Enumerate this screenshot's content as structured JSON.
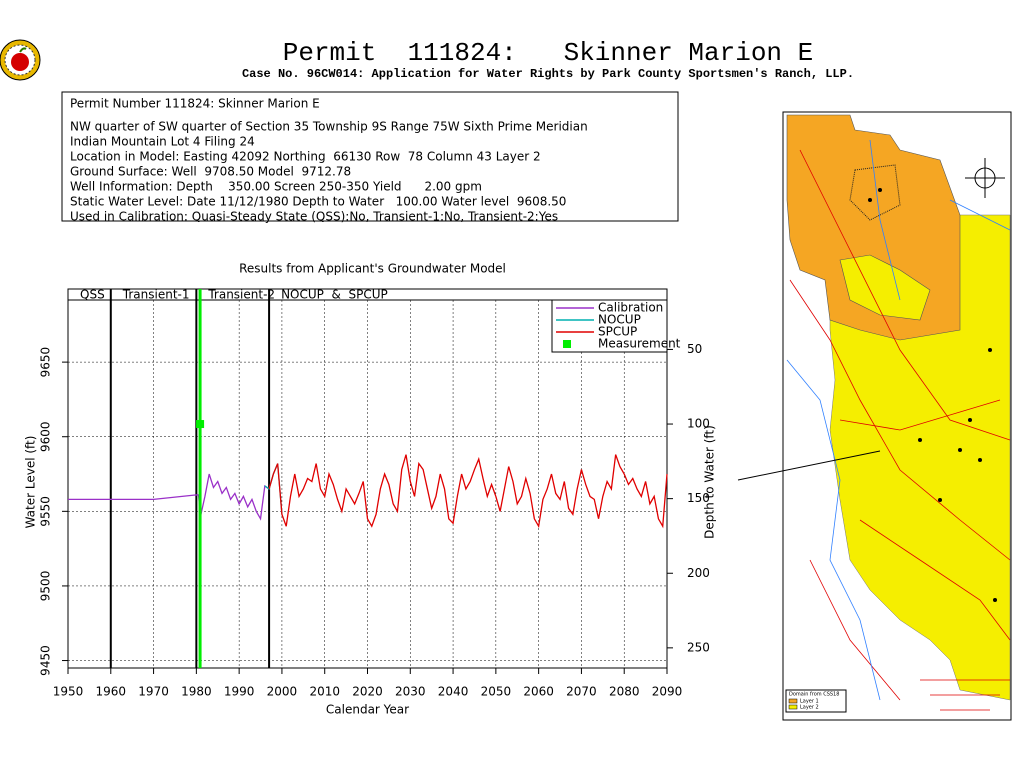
{
  "header": {
    "title": "Permit  111824:   Skinner Marion E",
    "subtitle": "Case No. 96CW014: Application for Water Rights by Park County Sportsmen's Ranch, LLP."
  },
  "info": {
    "lines": [
      "Permit Number 111824: Skinner Marion E",
      "NW quarter of SW quarter of Section 35 Township 9S Range 75W Sixth Prime Meridian",
      "Indian Mountain Lot 4 Filing 24",
      "Location in Model: Easting 42092 Northing  66130 Row  78 Column 43 Layer 2",
      "Ground Surface: Well  9708.50 Model  9712.78",
      "Well Information: Depth    350.00 Screen 250-350 Yield      2.00 gpm",
      "Static Water Level: Date 11/12/1980 Depth to Water   100.00 Water level  9608.50",
      "Used in Calibration: Quasi-Steady State (QSS):No, Transient-1:No, Transient-2:Yes"
    ]
  },
  "map": {
    "legend_title": "Domain from CSS18",
    "layers": [
      "Layer 1",
      "Layer 2"
    ]
  },
  "chart_data": {
    "type": "line",
    "title": "Results from Applicant's Groundwater Model",
    "x_label": "Calendar Year",
    "y_label": "Water Level (ft)",
    "y2_label": "Depth to Water (ft)",
    "xlim": [
      1950,
      2090
    ],
    "xticks": [
      1950,
      1960,
      1970,
      1980,
      1990,
      2000,
      2010,
      2020,
      2030,
      2040,
      2050,
      2060,
      2070,
      2080,
      2090
    ],
    "ylim": [
      9445,
      9699
    ],
    "yticks": [
      9450,
      9500,
      9550,
      9600,
      9650
    ],
    "y2lim": [
      263.5,
      9.5
    ],
    "y2ticks": [
      50,
      100,
      150,
      200,
      250
    ],
    "grid": true,
    "legend": "upper right",
    "periods": [
      {
        "label": "QSS",
        "start": 1950,
        "end": 1960
      },
      {
        "label": "Transient-1",
        "start": 1960,
        "end": 1980
      },
      {
        "label": "Transient-2",
        "start": 1980,
        "end": 1997
      },
      {
        "label": "NOCUP  &  SPCUP",
        "start": 1997,
        "end": 2090
      }
    ],
    "series": [
      {
        "name": "Calibration",
        "color": "#9a30c8",
        "x": [
          1950,
          1970,
          1980,
          1980.5,
          1981,
          1982,
          1983,
          1984,
          1985,
          1986,
          1987,
          1988,
          1989,
          1990,
          1991,
          1992,
          1993,
          1994,
          1995,
          1996,
          1997
        ],
        "values": [
          9558,
          9558,
          9561,
          9561,
          9547,
          9560,
          9575,
          9566,
          9570,
          9562,
          9566,
          9558,
          9562,
          9555,
          9560,
          9553,
          9558,
          9550,
          9545,
          9567,
          9565
        ]
      },
      {
        "name": "NOCUP",
        "color": "#00b0b0",
        "x": [
          1996,
          1997,
          1998,
          1999,
          2000
        ],
        "values": [
          9567,
          9565,
          9575,
          9582,
          9548
        ]
      },
      {
        "name": "SPCUP",
        "color": "#e00000",
        "x": [
          1997,
          1998,
          1999,
          2000,
          2001,
          2002,
          2003,
          2004,
          2005,
          2006,
          2007,
          2008,
          2009,
          2010,
          2011,
          2012,
          2013,
          2014,
          2015,
          2016,
          2017,
          2018,
          2019,
          2020,
          2021,
          2022,
          2023,
          2024,
          2025,
          2026,
          2027,
          2028,
          2029,
          2030,
          2031,
          2032,
          2033,
          2034,
          2035,
          2036,
          2037,
          2038,
          2039,
          2040,
          2041,
          2042,
          2043,
          2044,
          2045,
          2046,
          2047,
          2048,
          2049,
          2050,
          2051,
          2052,
          2053,
          2054,
          2055,
          2056,
          2057,
          2058,
          2059,
          2060,
          2061,
          2062,
          2063,
          2064,
          2065,
          2066,
          2067,
          2068,
          2069,
          2070,
          2071,
          2072,
          2073,
          2074,
          2075,
          2076,
          2077,
          2078,
          2079,
          2080,
          2081,
          2082,
          2083,
          2084,
          2085,
          2086,
          2087,
          2088,
          2089,
          2090
        ],
        "values": [
          9565,
          9575,
          9582,
          9548,
          9540,
          9560,
          9575,
          9560,
          9565,
          9572,
          9570,
          9582,
          9565,
          9560,
          9575,
          9568,
          9558,
          9550,
          9565,
          9560,
          9555,
          9562,
          9570,
          9545,
          9540,
          9548,
          9565,
          9575,
          9568,
          9555,
          9550,
          9578,
          9588,
          9570,
          9560,
          9582,
          9578,
          9565,
          9552,
          9560,
          9575,
          9565,
          9545,
          9542,
          9560,
          9575,
          9565,
          9570,
          9578,
          9585,
          9572,
          9560,
          9568,
          9560,
          9550,
          9565,
          9580,
          9570,
          9555,
          9560,
          9572,
          9562,
          9545,
          9540,
          9558,
          9565,
          9575,
          9562,
          9558,
          9570,
          9552,
          9548,
          9565,
          9578,
          9568,
          9560,
          9558,
          9545,
          9560,
          9570,
          9565,
          9588,
          9580,
          9575,
          9568,
          9572,
          9565,
          9560,
          9570,
          9555,
          9560,
          9545,
          9540,
          9575
        ]
      },
      {
        "name": "Measurement",
        "color": "#00ee00",
        "marker": "square",
        "x": [
          1980.87
        ],
        "values": [
          9608.5
        ]
      }
    ]
  }
}
